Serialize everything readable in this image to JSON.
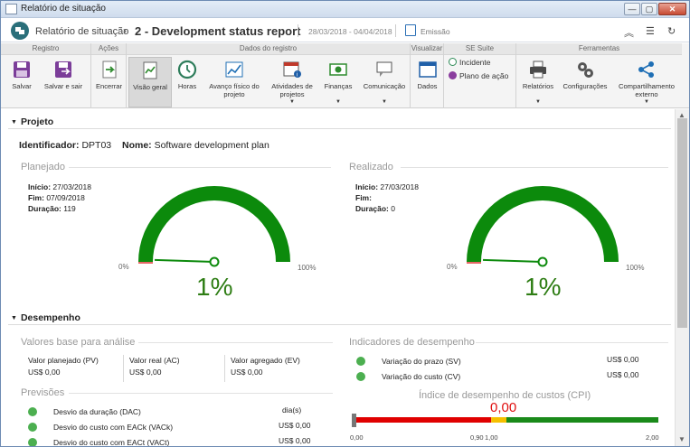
{
  "window": {
    "title": "Relatório de situação"
  },
  "header": {
    "app_name": "Relatório de situação",
    "separator": "›",
    "report_title": "2 - Development status report",
    "date_range": "28/03/2018 - 04/04/2018",
    "emit_label": "Emissão"
  },
  "ribbon": {
    "groups": {
      "registro": "Registro",
      "acoes": "Ações",
      "dados_registro": "Dados do registro",
      "visualizar": "Visualizar",
      "se_suite": "SE Suite",
      "ferramentas": "Ferramentas"
    },
    "buttons": {
      "salvar": "Salvar",
      "salvar_sair": "Salvar e sair",
      "encerrar": "Encerrar",
      "visao_geral": "Visão geral",
      "horas": "Horas",
      "avanco_fisico": "Avanço físico do projeto",
      "atividades": "Atividades de projetos",
      "financas": "Finanças",
      "comunicacao": "Comunicação",
      "dados": "Dados",
      "incidente": "Incidente",
      "plano_acao": "Plano de ação",
      "relatorios": "Relatórios",
      "configuracoes": "Configurações",
      "compartilhamento": "Compartilhamento externo"
    }
  },
  "projeto": {
    "section_title": "Projeto",
    "identificador_label": "Identificador:",
    "identificador": "DPT03",
    "nome_label": "Nome:",
    "nome": "Software development plan",
    "planejado": {
      "title": "Planejado",
      "inicio_label": "Início:",
      "inicio": "27/03/2018",
      "fim_label": "Fim:",
      "fim": "07/09/2018",
      "duracao_label": "Duração:",
      "duracao": "119",
      "gauge_min": "0%",
      "gauge_max": "100%",
      "gauge_value": "1%",
      "gauge_fraction": 0.01
    },
    "realizado": {
      "title": "Realizado",
      "inicio_label": "Início:",
      "inicio": "27/03/2018",
      "fim_label": "Fim:",
      "fim": "",
      "duracao_label": "Duração:",
      "duracao": "0",
      "gauge_min": "0%",
      "gauge_max": "100%",
      "gauge_value": "1%",
      "gauge_fraction": 0.01
    }
  },
  "desempenho": {
    "section_title": "Desempenho",
    "valores_base": {
      "title": "Valores base para análise",
      "items": [
        {
          "label": "Valor planejado (PV)",
          "value": "US$ 0,00"
        },
        {
          "label": "Valor real (AC)",
          "value": "US$ 0,00"
        },
        {
          "label": "Valor agregado (EV)",
          "value": "US$ 0,00"
        }
      ]
    },
    "previsoes": {
      "title": "Previsões",
      "items": [
        {
          "label": "Desvio da duração (DAC)",
          "value": "dia(s)"
        },
        {
          "label": "Desvio do custo com EACk (VACk)",
          "value": "US$ 0,00"
        },
        {
          "label": "Desvio do custo com EACt (VACt)",
          "value": "US$ 0,00"
        }
      ]
    },
    "indicadores": {
      "title": "Indicadores de desempenho",
      "items": [
        {
          "label": "Variação do prazo (SV)",
          "value": "US$ 0,00"
        },
        {
          "label": "Variação do custo (CV)",
          "value": "US$ 0,00"
        }
      ]
    },
    "cpi": {
      "title": "Índice de desempenho de custos (CPI)",
      "value": "0,00",
      "ticks": [
        "0,00",
        "0,90",
        "1,00",
        "2,00"
      ],
      "colors": {
        "low": "#e00000",
        "mid": "#f5c000",
        "high": "#1a8a1a"
      }
    }
  },
  "colors": {
    "gauge": "#0c8a0c",
    "brand": "#2a6f7a",
    "dot": "#4caf50"
  }
}
